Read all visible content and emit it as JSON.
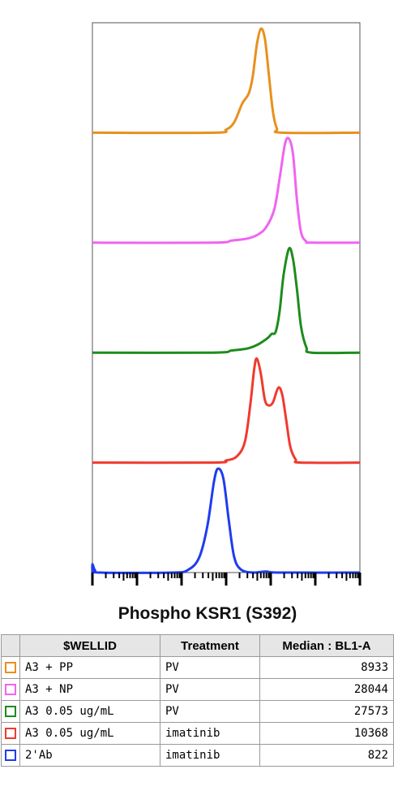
{
  "chart_data": {
    "type": "area",
    "title": "Phospho KSR1 (S392)",
    "x_scale": "log",
    "series": [
      {
        "id": "A3 + PP",
        "treatment": "PV",
        "median": "8933",
        "color": "#E8901E",
        "peak_x": 0.62,
        "curve": [
          [
            0.45,
            0
          ],
          [
            0.5,
            0.03
          ],
          [
            0.53,
            0.1
          ],
          [
            0.56,
            0.28
          ],
          [
            0.585,
            0.38
          ],
          [
            0.6,
            0.55
          ],
          [
            0.615,
            0.85
          ],
          [
            0.63,
            1.0
          ],
          [
            0.645,
            0.9
          ],
          [
            0.66,
            0.55
          ],
          [
            0.675,
            0.2
          ],
          [
            0.69,
            0.04
          ],
          [
            0.71,
            0
          ]
        ]
      },
      {
        "id": "A3 + NP",
        "treatment": "PV",
        "median": "28044",
        "color": "#F064F0",
        "peak_x": 0.74,
        "curve": [
          [
            0.45,
            0
          ],
          [
            0.52,
            0.02
          ],
          [
            0.58,
            0.04
          ],
          [
            0.62,
            0.08
          ],
          [
            0.65,
            0.15
          ],
          [
            0.68,
            0.32
          ],
          [
            0.7,
            0.62
          ],
          [
            0.72,
            0.95
          ],
          [
            0.735,
            1.0
          ],
          [
            0.75,
            0.85
          ],
          [
            0.765,
            0.4
          ],
          [
            0.78,
            0.1
          ],
          [
            0.8,
            0.01
          ],
          [
            0.82,
            0
          ]
        ]
      },
      {
        "id": "A3 0.05 ug/mL",
        "treatment": "PV",
        "color": "#1E8C1E",
        "median": "27573",
        "curve": [
          [
            0.45,
            0
          ],
          [
            0.52,
            0.02
          ],
          [
            0.58,
            0.04
          ],
          [
            0.62,
            0.08
          ],
          [
            0.655,
            0.14
          ],
          [
            0.67,
            0.18
          ],
          [
            0.685,
            0.2
          ],
          [
            0.7,
            0.4
          ],
          [
            0.715,
            0.75
          ],
          [
            0.735,
            1.0
          ],
          [
            0.75,
            0.9
          ],
          [
            0.765,
            0.6
          ],
          [
            0.78,
            0.25
          ],
          [
            0.8,
            0.05
          ],
          [
            0.82,
            0
          ]
        ]
      },
      {
        "id": "A3 0.05 ug/mL",
        "treatment": "imatinib",
        "median": "10368",
        "color": "#F03A2E",
        "curve": [
          [
            0.45,
            0
          ],
          [
            0.5,
            0.02
          ],
          [
            0.54,
            0.06
          ],
          [
            0.57,
            0.2
          ],
          [
            0.59,
            0.55
          ],
          [
            0.605,
            0.9
          ],
          [
            0.615,
            1.0
          ],
          [
            0.63,
            0.85
          ],
          [
            0.645,
            0.6
          ],
          [
            0.66,
            0.55
          ],
          [
            0.675,
            0.58
          ],
          [
            0.695,
            0.72
          ],
          [
            0.71,
            0.65
          ],
          [
            0.725,
            0.4
          ],
          [
            0.74,
            0.15
          ],
          [
            0.76,
            0.03
          ],
          [
            0.78,
            0
          ]
        ]
      },
      {
        "id": "2'Ab",
        "treatment": "imatinib",
        "median": "822",
        "color": "#1E3CF0",
        "curve": [
          [
            0.0,
            0.08
          ],
          [
            0.01,
            0.02
          ],
          [
            0.03,
            0
          ],
          [
            0.3,
            0
          ],
          [
            0.36,
            0.03
          ],
          [
            0.4,
            0.15
          ],
          [
            0.43,
            0.45
          ],
          [
            0.455,
            0.88
          ],
          [
            0.47,
            1.0
          ],
          [
            0.49,
            0.9
          ],
          [
            0.51,
            0.5
          ],
          [
            0.53,
            0.15
          ],
          [
            0.555,
            0.03
          ],
          [
            0.6,
            0
          ],
          [
            0.65,
            0.01
          ],
          [
            0.7,
            0
          ]
        ]
      }
    ]
  },
  "legend": {
    "headers": [
      "",
      "$WELLID",
      "Treatment",
      "Median : BL1-A"
    ],
    "rows": [
      {
        "wellid": "A3 + PP",
        "treatment": "PV",
        "median": "8933",
        "color": "#E8901E"
      },
      {
        "wellid": "A3 + NP",
        "treatment": "PV",
        "median": "28044",
        "color": "#F064F0"
      },
      {
        "wellid": "A3 0.05 ug/mL",
        "treatment": "PV",
        "median": "27573",
        "color": "#1E8C1E"
      },
      {
        "wellid": "A3 0.05 ug/mL",
        "treatment": "imatinib",
        "median": "10368",
        "color": "#F03A2E"
      },
      {
        "wellid": "2'Ab",
        "treatment": "imatinib",
        "median": "822",
        "color": "#1E3CF0"
      }
    ]
  }
}
